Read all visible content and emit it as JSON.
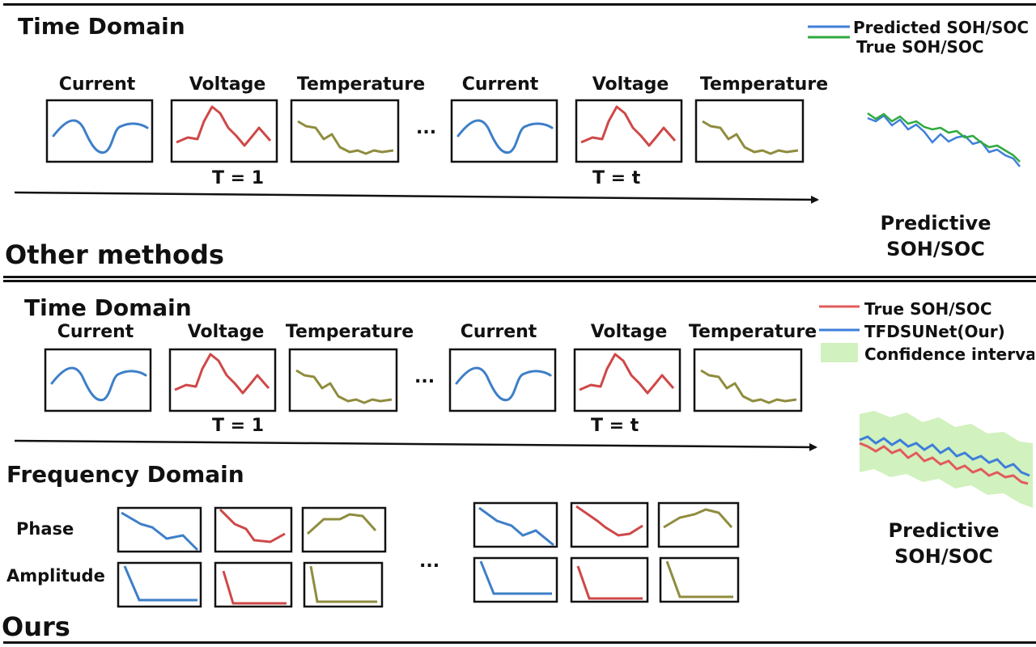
{
  "colors": {
    "current": "#3e7fc8",
    "voltage": "#cf4848",
    "temperature": "#8f8c3e",
    "predicted": "#3e7fd9",
    "true_green": "#2faa3e",
    "true_red": "#e25b5b",
    "confidence": "#c9eeb3"
  },
  "top": {
    "section_title": "Time Domain",
    "labels": [
      "Current",
      "Voltage",
      "Temperature",
      "Current",
      "Voltage",
      "Temperature"
    ],
    "ellipsis": "...",
    "t1": "T = 1",
    "tt": "T = t",
    "legend": [
      "Predicted SOH/SOC",
      "True SOH/SOC"
    ],
    "predictive_line1": "Predictive",
    "predictive_line2": "SOH/SOC",
    "method_label": "Other methods"
  },
  "bottom": {
    "time_title": "Time Domain",
    "labels": [
      "Current",
      "Voltage",
      "Temperature",
      "Current",
      "Voltage",
      "Temperature"
    ],
    "ellipsis": "...",
    "t1": "T = 1",
    "tt": "T = t",
    "freq_title": "Frequency Domain",
    "phase": "Phase",
    "amplitude": "Amplitude",
    "freq_ellipsis": "...",
    "legend": [
      "True SOH/SOC",
      "TFDSUNet(Our)",
      "Confidence interval"
    ],
    "predictive_line1": "Predictive",
    "predictive_line2": "SOH/SOC",
    "method_label": "Ours"
  }
}
